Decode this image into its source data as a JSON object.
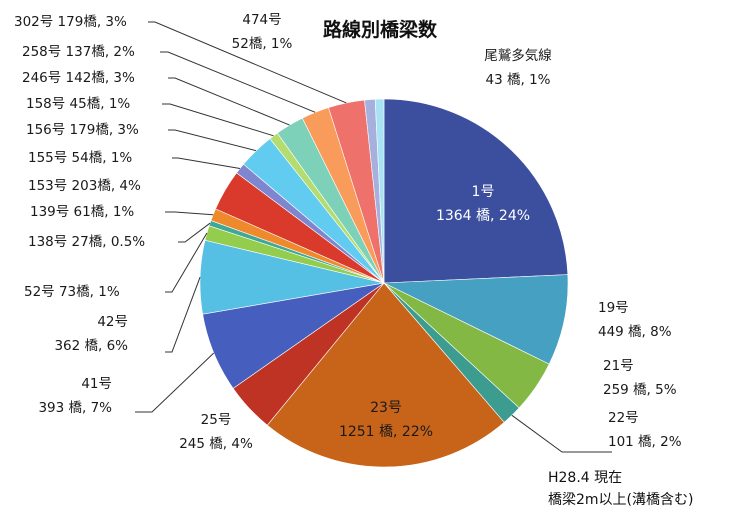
{
  "chart_data": {
    "type": "pie",
    "title": "路線別橋梁数",
    "note_line1": "H28.4 現在",
    "note_line2": "橋梁2m以上(溝橋含む)",
    "series": [
      {
        "name": "1号",
        "value": 1364,
        "line1": "1号",
        "line2": "1364 橋, 24%",
        "color": "#3C4F9E"
      },
      {
        "name": "19号",
        "value": 449,
        "line1": "19号",
        "line2": "449 橋, 8%",
        "color": "#46A0C2"
      },
      {
        "name": "21号",
        "value": 259,
        "line1": "21号",
        "line2": "259 橋, 5%",
        "color": "#82B843"
      },
      {
        "name": "22号",
        "value": 101,
        "line1": "22号",
        "line2": "101 橋, 2%",
        "color": "#3B9C8F"
      },
      {
        "name": "23号",
        "value": 1251,
        "line1": "23号",
        "line2": "1251 橋, 22%",
        "color": "#C8641A"
      },
      {
        "name": "25号",
        "value": 245,
        "line1": "25号",
        "line2": "245 橋, 4%",
        "color": "#BF3324"
      },
      {
        "name": "41号",
        "value": 393,
        "line1": "41号",
        "line2": "393 橋, 7%",
        "color": "#465FBF"
      },
      {
        "name": "42号",
        "value": 362,
        "line1": "42号",
        "line2": "362 橋, 6%",
        "color": "#55BFE4"
      },
      {
        "name": "52号",
        "value": 73,
        "line1": "52号 73橋, 1%",
        "line2": "",
        "color": "#94CD4E"
      },
      {
        "name": "138号",
        "value": 27,
        "line1": "138号 27橋, 0.5%",
        "line2": "",
        "color": "#3FA896"
      },
      {
        "name": "139号",
        "value": 61,
        "line1": "139号 61橋, 1%",
        "line2": "",
        "color": "#EF8A2C"
      },
      {
        "name": "153号",
        "value": 203,
        "line1": "153号 203橋, 4%",
        "line2": "",
        "color": "#D93A2B"
      },
      {
        "name": "155号",
        "value": 54,
        "line1": "155号 54橋, 1%",
        "line2": "",
        "color": "#7E86CF"
      },
      {
        "name": "156号",
        "value": 179,
        "line1": "156号 179橋, 3%",
        "line2": "",
        "color": "#62CCF0"
      },
      {
        "name": "158号",
        "value": 45,
        "line1": "158号 45橋, 1%",
        "line2": "",
        "color": "#B4DC6E"
      },
      {
        "name": "246号",
        "value": 142,
        "line1": "246号 142橋, 3%",
        "line2": "",
        "color": "#7DD1B9"
      },
      {
        "name": "258号",
        "value": 137,
        "line1": "258号 137橋, 2%",
        "line2": "",
        "color": "#F99B5A"
      },
      {
        "name": "302号",
        "value": 179,
        "line1": "302号 179橋, 3%",
        "line2": "",
        "color": "#EE726B"
      },
      {
        "name": "474号",
        "value": 52,
        "line1": "474号",
        "line2": "52橋, 1%",
        "color": "#A6B0DC"
      },
      {
        "name": "尾鷲多気線",
        "value": 43,
        "line1": "尾鷲多気線",
        "line2": "43 橋, 1%",
        "color": "#A9E2F5"
      }
    ]
  }
}
